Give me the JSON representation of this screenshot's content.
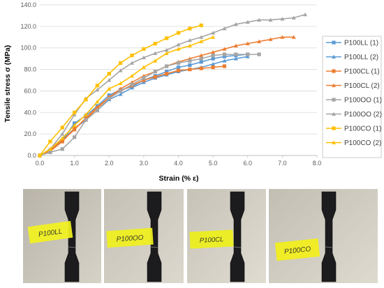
{
  "chart_data": {
    "type": "line",
    "title": "",
    "xlabel": "Strain (% ε)",
    "ylabel": "Tensile stress σ (MPa)",
    "xlim": [
      0,
      8
    ],
    "ylim": [
      0,
      140
    ],
    "x_ticks": [
      "0.0",
      "1.0",
      "2.0",
      "3.0",
      "4.0",
      "5.0",
      "6.0",
      "7.0",
      "8.0"
    ],
    "y_ticks": [
      "0.0",
      "20.0",
      "40.0",
      "60.0",
      "80.0",
      "100.0",
      "120.0",
      "140.0"
    ],
    "grid": true,
    "legend_position": "right",
    "series": [
      {
        "name": "P100LL (1)",
        "color": "#5B9BD5",
        "marker": "square",
        "points": [
          [
            0,
            0
          ],
          [
            0.3,
            5
          ],
          [
            0.65,
            14
          ],
          [
            1.0,
            30
          ],
          [
            1.33,
            37
          ],
          [
            1.66,
            46
          ],
          [
            2.0,
            56
          ],
          [
            2.33,
            61
          ],
          [
            2.66,
            64
          ],
          [
            3.0,
            70
          ],
          [
            3.33,
            74
          ],
          [
            3.66,
            78
          ],
          [
            4.0,
            82
          ],
          [
            4.33,
            84
          ],
          [
            4.66,
            87
          ],
          [
            5.0,
            90
          ],
          [
            5.33,
            92
          ],
          [
            5.66,
            93
          ],
          [
            6.0,
            94
          ]
        ]
      },
      {
        "name": "P100LL (2)",
        "color": "#5B9BD5",
        "marker": "triangle",
        "points": [
          [
            0,
            0
          ],
          [
            0.3,
            6
          ],
          [
            0.65,
            15
          ],
          [
            1.0,
            25
          ],
          [
            1.33,
            33
          ],
          [
            1.66,
            42
          ],
          [
            2.0,
            52
          ],
          [
            2.33,
            57
          ],
          [
            2.66,
            63
          ],
          [
            3.0,
            68
          ],
          [
            3.33,
            72
          ],
          [
            3.66,
            75
          ],
          [
            4.0,
            78
          ],
          [
            4.33,
            80
          ],
          [
            4.66,
            82
          ],
          [
            5.0,
            85
          ],
          [
            5.33,
            88
          ],
          [
            5.66,
            90
          ],
          [
            6.0,
            92
          ]
        ]
      },
      {
        "name": "P100CL (1)",
        "color": "#ED7D31",
        "marker": "square",
        "points": [
          [
            0,
            0
          ],
          [
            0.3,
            4
          ],
          [
            0.65,
            13
          ],
          [
            1.0,
            25
          ],
          [
            1.33,
            34
          ],
          [
            1.66,
            44
          ],
          [
            2.0,
            54
          ],
          [
            2.33,
            60
          ],
          [
            2.66,
            65
          ],
          [
            3.0,
            70
          ],
          [
            3.33,
            73
          ],
          [
            3.66,
            76
          ],
          [
            4.0,
            79
          ],
          [
            4.33,
            80
          ],
          [
            4.66,
            81
          ],
          [
            5.0,
            82
          ],
          [
            5.33,
            83
          ]
        ]
      },
      {
        "name": "P100CL (2)",
        "color": "#ED7D31",
        "marker": "triangle",
        "points": [
          [
            0,
            0
          ],
          [
            0.3,
            5
          ],
          [
            0.65,
            14
          ],
          [
            1.0,
            24
          ],
          [
            1.33,
            35
          ],
          [
            1.66,
            45
          ],
          [
            2.0,
            54
          ],
          [
            2.33,
            62
          ],
          [
            2.66,
            68
          ],
          [
            3.0,
            74
          ],
          [
            3.33,
            78
          ],
          [
            3.66,
            83
          ],
          [
            4.0,
            87
          ],
          [
            4.33,
            90
          ],
          [
            4.66,
            93
          ],
          [
            5.0,
            96
          ],
          [
            5.33,
            99
          ],
          [
            5.66,
            102
          ],
          [
            6.0,
            104
          ],
          [
            6.33,
            106
          ],
          [
            6.66,
            108
          ],
          [
            7.0,
            110
          ],
          [
            7.33,
            110
          ]
        ]
      },
      {
        "name": "P100OO (1)",
        "color": "#A5A5A5",
        "marker": "square",
        "points": [
          [
            0,
            0
          ],
          [
            0.3,
            3
          ],
          [
            0.65,
            6
          ],
          [
            1.0,
            17
          ],
          [
            1.33,
            33
          ],
          [
            1.66,
            42
          ],
          [
            2.0,
            53
          ],
          [
            2.33,
            60
          ],
          [
            2.66,
            66
          ],
          [
            3.0,
            72
          ],
          [
            3.33,
            78
          ],
          [
            3.66,
            83
          ],
          [
            4.0,
            86
          ],
          [
            4.33,
            88
          ],
          [
            4.66,
            90
          ],
          [
            5.0,
            93
          ],
          [
            5.33,
            94
          ],
          [
            5.66,
            94
          ],
          [
            6.0,
            94
          ],
          [
            6.33,
            94
          ]
        ]
      },
      {
        "name": "P100OO (2)",
        "color": "#A5A5A5",
        "marker": "triangle",
        "points": [
          [
            0,
            0
          ],
          [
            0.3,
            6
          ],
          [
            0.65,
            20
          ],
          [
            1.0,
            38
          ],
          [
            1.33,
            53
          ],
          [
            1.66,
            61
          ],
          [
            2.0,
            70
          ],
          [
            2.33,
            79
          ],
          [
            2.66,
            86
          ],
          [
            3.0,
            91
          ],
          [
            3.33,
            95
          ],
          [
            3.66,
            98
          ],
          [
            4.0,
            103
          ],
          [
            4.33,
            107
          ],
          [
            4.66,
            110
          ],
          [
            5.0,
            114
          ],
          [
            5.33,
            118
          ],
          [
            5.66,
            122
          ],
          [
            6.0,
            124
          ],
          [
            6.33,
            126
          ],
          [
            6.66,
            126
          ],
          [
            7.0,
            127
          ],
          [
            7.33,
            128
          ],
          [
            7.66,
            131
          ]
        ]
      },
      {
        "name": "P100CO (1)",
        "color": "#FFC000",
        "marker": "square",
        "points": [
          [
            0,
            0
          ],
          [
            0.3,
            13
          ],
          [
            0.65,
            26
          ],
          [
            1.0,
            40
          ],
          [
            1.33,
            52
          ],
          [
            1.66,
            65
          ],
          [
            2.0,
            76
          ],
          [
            2.33,
            86
          ],
          [
            2.66,
            93
          ],
          [
            3.0,
            99
          ],
          [
            3.33,
            104
          ],
          [
            3.66,
            109
          ],
          [
            4.0,
            114
          ],
          [
            4.33,
            118
          ],
          [
            4.66,
            121
          ]
        ]
      },
      {
        "name": "P100CO (2)",
        "color": "#FFC000",
        "marker": "triangle",
        "points": [
          [
            0,
            0
          ],
          [
            0.3,
            6
          ],
          [
            0.65,
            16
          ],
          [
            1.0,
            28
          ],
          [
            1.33,
            38
          ],
          [
            1.66,
            50
          ],
          [
            2.0,
            62
          ],
          [
            2.33,
            67
          ],
          [
            2.66,
            74
          ],
          [
            3.0,
            82
          ],
          [
            3.33,
            88
          ],
          [
            3.66,
            95
          ],
          [
            4.0,
            99
          ],
          [
            4.33,
            102
          ],
          [
            4.66,
            106
          ],
          [
            5.0,
            110
          ]
        ]
      }
    ]
  },
  "photos": [
    {
      "label": "P100LL",
      "tag_color": "#F2F21E"
    },
    {
      "label": "P100OO",
      "tag_color": "#F0F01C"
    },
    {
      "label": "P100CL",
      "tag_color": "#EDF019"
    },
    {
      "label": "P100CO",
      "tag_color": "#F3EF1A"
    }
  ]
}
